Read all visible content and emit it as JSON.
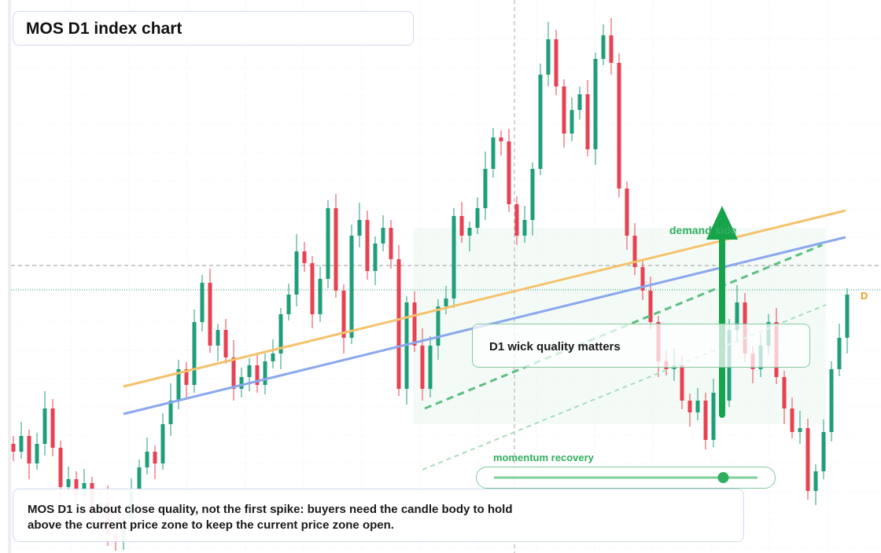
{
  "chart_data": {
    "type": "candlestick",
    "title": "MOS D1 index chart",
    "up_color": "#1f9e7a",
    "down_color": "#e84152",
    "ylim": [
      0,
      704
    ],
    "open": [
      139,
      129,
      149,
      114,
      139,
      184,
      134,
      84,
      94,
      74,
      89,
      54,
      64,
      24,
      14,
      44,
      79,
      109,
      129,
      114,
      164,
      194,
      234,
      214,
      294,
      344,
      264,
      284,
      249,
      209,
      224,
      239,
      214,
      244,
      254,
      304,
      329,
      384,
      369,
      304,
      349,
      439,
      334,
      274,
      404,
      424,
      359,
      394,
      414,
      374,
      209,
      319,
      264,
      209,
      264,
      314,
      324,
      429,
      404,
      414,
      439,
      489,
      529,
      524,
      444,
      404,
      424,
      489,
      609,
      654,
      594,
      534,
      564,
      584,
      514,
      629,
      659,
      624,
      464,
      404,
      364,
      334,
      294,
      244,
      234,
      239,
      194,
      179,
      194,
      144,
      204,
      194,
      284,
      319,
      254,
      234,
      264,
      294,
      224,
      184,
      154,
      159,
      79,
      104,
      154,
      234,
      274
    ],
    "high": [
      149,
      167,
      157,
      153,
      206,
      196,
      143,
      110,
      104,
      107,
      97,
      78,
      86,
      36,
      53,
      95,
      119,
      147,
      137,
      178,
      216,
      246,
      243,
      310,
      354,
      362,
      292,
      298,
      271,
      236,
      248,
      255,
      254,
      272,
      312,
      343,
      406,
      396,
      378,
      365,
      449,
      457,
      342,
      418,
      446,
      436,
      403,
      430,
      424,
      392,
      327,
      333,
      286,
      276,
      323,
      340,
      439,
      447,
      422,
      453,
      511,
      541,
      538,
      540,
      454,
      442,
      497,
      623,
      676,
      666,
      603,
      580,
      594,
      602,
      637,
      673,
      681,
      636,
      473,
      420,
      374,
      352,
      302,
      258,
      261,
      251,
      203,
      210,
      204,
      222,
      212,
      298,
      341,
      331,
      263,
      280,
      304,
      312,
      232,
      198,
      181,
      171,
      113,
      170,
      244,
      292,
      337
    ],
    "low": [
      117,
      120,
      94,
      106,
      124,
      123,
      66,
      74,
      62,
      65,
      34,
      46,
      9,
      3,
      4,
      34,
      67,
      100,
      94,
      106,
      149,
      183,
      196,
      204,
      282,
      255,
      244,
      241,
      194,
      198,
      206,
      204,
      202,
      235,
      234,
      296,
      314,
      358,
      286,
      294,
      337,
      325,
      254,
      266,
      389,
      348,
      341,
      384,
      362,
      200,
      189,
      256,
      194,
      198,
      246,
      304,
      312,
      395,
      384,
      406,
      424,
      478,
      506,
      434,
      392,
      395,
      404,
      481,
      594,
      583,
      516,
      524,
      552,
      505,
      494,
      621,
      609,
      453,
      386,
      354,
      322,
      285,
      224,
      226,
      219,
      183,
      161,
      169,
      132,
      135,
      174,
      186,
      269,
      243,
      216,
      224,
      252,
      215,
      164,
      146,
      139,
      68,
      61,
      94,
      142,
      225,
      254
    ],
    "close": [
      129,
      149,
      114,
      139,
      184,
      134,
      84,
      94,
      74,
      89,
      54,
      64,
      24,
      14,
      44,
      79,
      109,
      129,
      114,
      164,
      194,
      234,
      214,
      294,
      344,
      264,
      284,
      249,
      209,
      224,
      239,
      214,
      244,
      254,
      304,
      329,
      384,
      369,
      304,
      349,
      439,
      334,
      274,
      404,
      424,
      359,
      394,
      414,
      374,
      209,
      319,
      264,
      209,
      264,
      314,
      324,
      429,
      404,
      414,
      439,
      489,
      529,
      524,
      444,
      404,
      424,
      489,
      609,
      654,
      594,
      534,
      564,
      584,
      514,
      629,
      659,
      624,
      464,
      404,
      364,
      334,
      294,
      244,
      234,
      239,
      194,
      179,
      194,
      144,
      204,
      194,
      284,
      319,
      254,
      234,
      264,
      294,
      224,
      184,
      154,
      159,
      79,
      104,
      154,
      234,
      274,
      329
    ],
    "annotations": {
      "zone": "demand side",
      "wick": "D1 wick quality matters",
      "momentum": "momentum recovery",
      "marker": "D",
      "note": "MOS D1 is about close quality, not the first spike: buyers need the candle body to hold above the current price zone to keep the current price zone open."
    },
    "slider_value": 87
  }
}
